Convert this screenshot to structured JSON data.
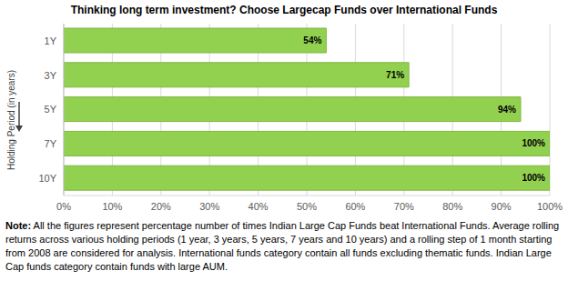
{
  "chart_data": {
    "type": "bar",
    "orientation": "horizontal",
    "title": "Thinking long term investment? Choose Largecap Funds over International Funds",
    "y_label": "Holding Period (in years)",
    "categories": [
      "1Y",
      "3Y",
      "5Y",
      "7Y",
      "10Y"
    ],
    "values": [
      54,
      71,
      94,
      100,
      100
    ],
    "value_labels": [
      "54%",
      "71%",
      "94%",
      "100%",
      "100%"
    ],
    "data_labels": true,
    "color": "#92d050",
    "xlim": [
      0,
      100
    ],
    "xticks": [
      {
        "value": 0,
        "label": "0%"
      },
      {
        "value": 10,
        "label": "10%"
      },
      {
        "value": 20,
        "label": "20%"
      },
      {
        "value": 30,
        "label": "30%"
      },
      {
        "value": 40,
        "label": "40%"
      },
      {
        "value": 50,
        "label": "50%"
      },
      {
        "value": 60,
        "label": "60%"
      },
      {
        "value": 70,
        "label": "70%"
      },
      {
        "value": 80,
        "label": "80%"
      },
      {
        "value": 90,
        "label": "90%"
      },
      {
        "value": 100,
        "label": "100%"
      }
    ],
    "grid": true,
    "note": {
      "label": "Note:",
      "text": "All the figures represent percentage number of times Indian Large Cap Funds beat International Funds. Average rolling returns across various holding periods (1 year, 3 years, 5 years, 7 years and 10 years) and a rolling step of 1 month starting from 2008 are considered for analysis. International funds category contain all funds excluding thematic funds. Indian Large Cap funds category contain funds with large AUM."
    }
  }
}
